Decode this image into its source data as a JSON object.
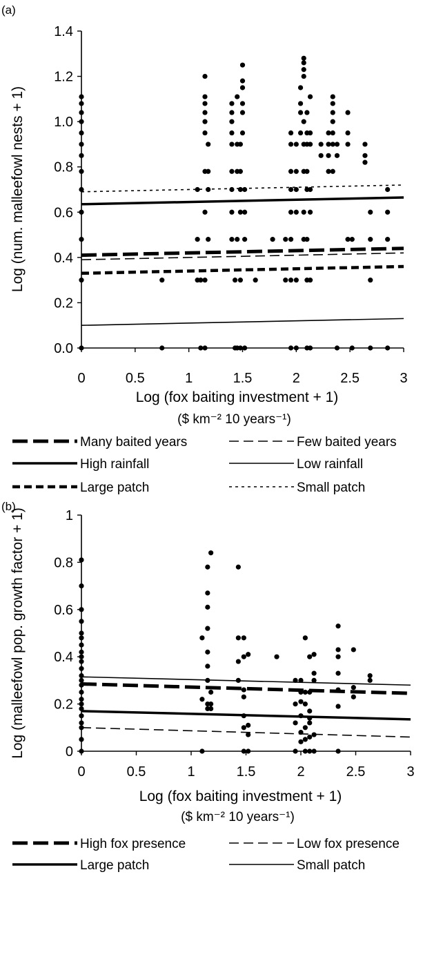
{
  "chart_data": [
    {
      "panel_label": "(a)",
      "type": "scatter",
      "xlabel": "Log (fox baiting investment + 1)",
      "xunit": "($ km⁻² 10 years⁻¹)",
      "ylabel": "Log (num. malleefowl nests + 1)",
      "xlim": [
        0,
        3
      ],
      "ylim": [
        0,
        1.4
      ],
      "xticks": [
        "0",
        "0.5",
        "1",
        "1.5",
        "2",
        "2.5",
        "3"
      ],
      "yticks": [
        "0.0",
        "0.2",
        "0.4",
        "0.6",
        "0.8",
        "1.0",
        "1.2",
        "1.4"
      ],
      "grid": false,
      "legend_placement": "below",
      "points": [
        [
          0,
          0
        ],
        [
          0,
          0.3
        ],
        [
          0,
          0.48
        ],
        [
          0,
          0.6
        ],
        [
          0,
          0.7
        ],
        [
          0,
          0.78
        ],
        [
          0,
          0.85
        ],
        [
          0,
          0.9
        ],
        [
          0,
          0.95
        ],
        [
          0,
          1.0
        ],
        [
          0,
          1.04
        ],
        [
          0,
          1.08
        ],
        [
          0,
          1.11
        ],
        [
          0.75,
          0
        ],
        [
          0.75,
          0.3
        ],
        [
          1.08,
          0.3
        ],
        [
          1.08,
          0.48
        ],
        [
          1.08,
          0.7
        ],
        [
          1.11,
          0
        ],
        [
          1.11,
          0.3
        ],
        [
          1.15,
          0
        ],
        [
          1.15,
          0.3
        ],
        [
          1.15,
          0.6
        ],
        [
          1.15,
          0.78
        ],
        [
          1.15,
          0.95
        ],
        [
          1.15,
          1.0
        ],
        [
          1.15,
          1.04
        ],
        [
          1.15,
          1.08
        ],
        [
          1.15,
          1.11
        ],
        [
          1.15,
          1.2
        ],
        [
          1.18,
          0.48
        ],
        [
          1.18,
          0.7
        ],
        [
          1.18,
          0.78
        ],
        [
          1.18,
          0.9
        ],
        [
          1.4,
          0.48
        ],
        [
          1.4,
          0.6
        ],
        [
          1.4,
          0.7
        ],
        [
          1.4,
          0.78
        ],
        [
          1.4,
          0.9
        ],
        [
          1.4,
          0.95
        ],
        [
          1.4,
          1.0
        ],
        [
          1.4,
          1.04
        ],
        [
          1.4,
          1.08
        ],
        [
          1.43,
          0
        ],
        [
          1.43,
          0.3
        ],
        [
          1.45,
          0
        ],
        [
          1.45,
          0.48
        ],
        [
          1.45,
          0.78
        ],
        [
          1.45,
          0.9
        ],
        [
          1.45,
          1.11
        ],
        [
          1.48,
          0
        ],
        [
          1.48,
          0.3
        ],
        [
          1.48,
          0.6
        ],
        [
          1.48,
          0.7
        ],
        [
          1.48,
          0.78
        ],
        [
          1.48,
          0.9
        ],
        [
          1.5,
          0.95
        ],
        [
          1.5,
          1.04
        ],
        [
          1.5,
          1.08
        ],
        [
          1.5,
          1.15
        ],
        [
          1.5,
          1.18
        ],
        [
          1.5,
          1.25
        ],
        [
          1.52,
          0
        ],
        [
          1.52,
          0.48
        ],
        [
          1.52,
          0.6
        ],
        [
          1.52,
          0.7
        ],
        [
          1.62,
          0.3
        ],
        [
          1.78,
          0.48
        ],
        [
          1.9,
          0.3
        ],
        [
          1.9,
          0.48
        ],
        [
          1.95,
          0
        ],
        [
          1.95,
          0.3
        ],
        [
          1.95,
          0.48
        ],
        [
          1.95,
          0.6
        ],
        [
          1.95,
          0.7
        ],
        [
          1.95,
          0.78
        ],
        [
          1.95,
          0.9
        ],
        [
          1.95,
          0.95
        ],
        [
          2.0,
          0
        ],
        [
          2.0,
          0.3
        ],
        [
          2.0,
          0.6
        ],
        [
          2.0,
          0.7
        ],
        [
          2.0,
          0.78
        ],
        [
          2.0,
          0.9
        ],
        [
          2.04,
          0.95
        ],
        [
          2.04,
          1.04
        ],
        [
          2.04,
          1.08
        ],
        [
          2.04,
          1.15
        ],
        [
          2.07,
          0.48
        ],
        [
          2.07,
          0.6
        ],
        [
          2.07,
          0.78
        ],
        [
          2.07,
          0.9
        ],
        [
          2.07,
          1.0
        ],
        [
          2.07,
          1.2
        ],
        [
          2.07,
          1.23
        ],
        [
          2.07,
          1.26
        ],
        [
          2.07,
          1.28
        ],
        [
          2.1,
          0
        ],
        [
          2.1,
          0.3
        ],
        [
          2.1,
          0.48
        ],
        [
          2.1,
          0.7
        ],
        [
          2.1,
          0.78
        ],
        [
          2.1,
          0.9
        ],
        [
          2.1,
          0.95
        ],
        [
          2.1,
          1.04
        ],
        [
          2.13,
          0
        ],
        [
          2.13,
          0.3
        ],
        [
          2.13,
          0.6
        ],
        [
          2.13,
          0.7
        ],
        [
          2.13,
          0.9
        ],
        [
          2.13,
          0.95
        ],
        [
          2.13,
          1.11
        ],
        [
          2.23,
          0.85
        ],
        [
          2.23,
          0.9
        ],
        [
          2.3,
          0.78
        ],
        [
          2.3,
          0.85
        ],
        [
          2.3,
          0.9
        ],
        [
          2.3,
          0.95
        ],
        [
          2.34,
          0.78
        ],
        [
          2.34,
          0.9
        ],
        [
          2.34,
          0.95
        ],
        [
          2.34,
          1.0
        ],
        [
          2.34,
          1.04
        ],
        [
          2.34,
          1.08
        ],
        [
          2.34,
          1.11
        ],
        [
          2.38,
          0
        ],
        [
          2.38,
          0.85
        ],
        [
          2.38,
          0.9
        ],
        [
          2.48,
          0.48
        ],
        [
          2.48,
          0.9
        ],
        [
          2.48,
          0.95
        ],
        [
          2.48,
          1.04
        ],
        [
          2.52,
          0
        ],
        [
          2.52,
          0.48
        ],
        [
          2.64,
          0.82
        ],
        [
          2.64,
          0.85
        ],
        [
          2.64,
          0.9
        ],
        [
          2.69,
          0
        ],
        [
          2.69,
          0.3
        ],
        [
          2.69,
          0.48
        ],
        [
          2.69,
          0.6
        ],
        [
          2.85,
          0
        ],
        [
          2.85,
          0.48
        ],
        [
          2.85,
          0.6
        ],
        [
          2.85,
          0.7
        ]
      ],
      "series": [
        {
          "name": "Many baited years",
          "style": "long-dash-thick",
          "x": [
            0,
            3
          ],
          "y": [
            0.41,
            0.44
          ]
        },
        {
          "name": "Few baited years",
          "style": "dash-thin",
          "x": [
            0,
            3
          ],
          "y": [
            0.39,
            0.42
          ]
        },
        {
          "name": "High rainfall",
          "style": "solid-thick",
          "x": [
            0,
            3
          ],
          "y": [
            0.635,
            0.665
          ]
        },
        {
          "name": "Low rainfall",
          "style": "solid-thin",
          "x": [
            0,
            3
          ],
          "y": [
            0.1,
            0.13
          ]
        },
        {
          "name": "Large patch",
          "style": "short-dash-thick",
          "x": [
            0,
            3
          ],
          "y": [
            0.33,
            0.36
          ]
        },
        {
          "name": "Small patch",
          "style": "dot-thin",
          "x": [
            0,
            3
          ],
          "y": [
            0.69,
            0.72
          ]
        }
      ]
    },
    {
      "panel_label": "(b)",
      "type": "scatter",
      "xlabel": "Log (fox baiting investment + 1)",
      "xunit": "($ km⁻² 10 years⁻¹)",
      "ylabel": "Log (malleefowl pop. growth factor + 1)",
      "xlim": [
        0,
        3
      ],
      "ylim": [
        0,
        1
      ],
      "xticks": [
        "0",
        "0.5",
        "1",
        "1.5",
        "2",
        "2.5",
        "3"
      ],
      "yticks": [
        "0",
        "0.2",
        "0.4",
        "0.6",
        "0.8",
        "1"
      ],
      "grid": false,
      "legend_placement": "below",
      "points": [
        [
          0,
          0
        ],
        [
          0,
          0.05
        ],
        [
          0,
          0.1
        ],
        [
          0,
          0.12
        ],
        [
          0,
          0.15
        ],
        [
          0,
          0.18
        ],
        [
          0,
          0.2
        ],
        [
          0,
          0.22
        ],
        [
          0,
          0.25
        ],
        [
          0,
          0.28
        ],
        [
          0,
          0.3
        ],
        [
          0,
          0.32
        ],
        [
          0,
          0.35
        ],
        [
          0,
          0.38
        ],
        [
          0,
          0.4
        ],
        [
          0,
          0.42
        ],
        [
          0,
          0.45
        ],
        [
          0,
          0.48
        ],
        [
          0,
          0.5
        ],
        [
          0,
          0.55
        ],
        [
          0,
          0.6
        ],
        [
          0,
          0.7
        ],
        [
          0,
          0.81
        ],
        [
          1.1,
          0
        ],
        [
          1.1,
          0.22
        ],
        [
          1.1,
          0.48
        ],
        [
          1.15,
          0.18
        ],
        [
          1.15,
          0.2
        ],
        [
          1.15,
          0.3
        ],
        [
          1.15,
          0.36
        ],
        [
          1.15,
          0.42
        ],
        [
          1.15,
          0.52
        ],
        [
          1.15,
          0.61
        ],
        [
          1.15,
          0.67
        ],
        [
          1.15,
          0.78
        ],
        [
          1.18,
          0.18
        ],
        [
          1.18,
          0.2
        ],
        [
          1.18,
          0.25
        ],
        [
          1.18,
          0.84
        ],
        [
          1.43,
          0.3
        ],
        [
          1.43,
          0.38
        ],
        [
          1.43,
          0.48
        ],
        [
          1.43,
          0.78
        ],
        [
          1.48,
          0
        ],
        [
          1.48,
          0.1
        ],
        [
          1.48,
          0.15
        ],
        [
          1.48,
          0.23
        ],
        [
          1.48,
          0.26
        ],
        [
          1.48,
          0.4
        ],
        [
          1.48,
          0.48
        ],
        [
          1.52,
          0
        ],
        [
          1.52,
          0.07
        ],
        [
          1.52,
          0.11
        ],
        [
          1.52,
          0.41
        ],
        [
          1.78,
          0.4
        ],
        [
          1.95,
          0
        ],
        [
          1.95,
          0.12
        ],
        [
          1.95,
          0.2
        ],
        [
          1.95,
          0.3
        ],
        [
          2.0,
          0.04
        ],
        [
          2.0,
          0.08
        ],
        [
          2.0,
          0.15
        ],
        [
          2.0,
          0.21
        ],
        [
          2.0,
          0.25
        ],
        [
          2.0,
          0.3
        ],
        [
          2.04,
          0
        ],
        [
          2.04,
          0.05
        ],
        [
          2.04,
          0.1
        ],
        [
          2.04,
          0.2
        ],
        [
          2.04,
          0.25
        ],
        [
          2.04,
          0.48
        ],
        [
          2.08,
          0
        ],
        [
          2.08,
          0.06
        ],
        [
          2.08,
          0.12
        ],
        [
          2.08,
          0.14
        ],
        [
          2.08,
          0.17
        ],
        [
          2.08,
          0.25
        ],
        [
          2.08,
          0.4
        ],
        [
          2.12,
          0
        ],
        [
          2.12,
          0.07
        ],
        [
          2.12,
          0.3
        ],
        [
          2.12,
          0.33
        ],
        [
          2.12,
          0.41
        ],
        [
          2.34,
          0
        ],
        [
          2.34,
          0.19
        ],
        [
          2.34,
          0.26
        ],
        [
          2.34,
          0.33
        ],
        [
          2.34,
          0.4
        ],
        [
          2.34,
          0.43
        ],
        [
          2.34,
          0.53
        ],
        [
          2.48,
          0.23
        ],
        [
          2.48,
          0.27
        ],
        [
          2.48,
          0.43
        ],
        [
          2.63,
          0.3
        ],
        [
          2.63,
          0.32
        ]
      ],
      "series": [
        {
          "name": "High fox presence",
          "style": "long-dash-thick",
          "x": [
            0,
            3
          ],
          "y": [
            0.285,
            0.245
          ]
        },
        {
          "name": "Low fox presence",
          "style": "dash-thin",
          "x": [
            0,
            3
          ],
          "y": [
            0.1,
            0.06
          ]
        },
        {
          "name": "Large patch",
          "style": "solid-thick",
          "x": [
            0,
            3
          ],
          "y": [
            0.17,
            0.135
          ]
        },
        {
          "name": "Small patch",
          "style": "solid-thin",
          "x": [
            0,
            3
          ],
          "y": [
            0.315,
            0.28
          ]
        }
      ]
    }
  ]
}
